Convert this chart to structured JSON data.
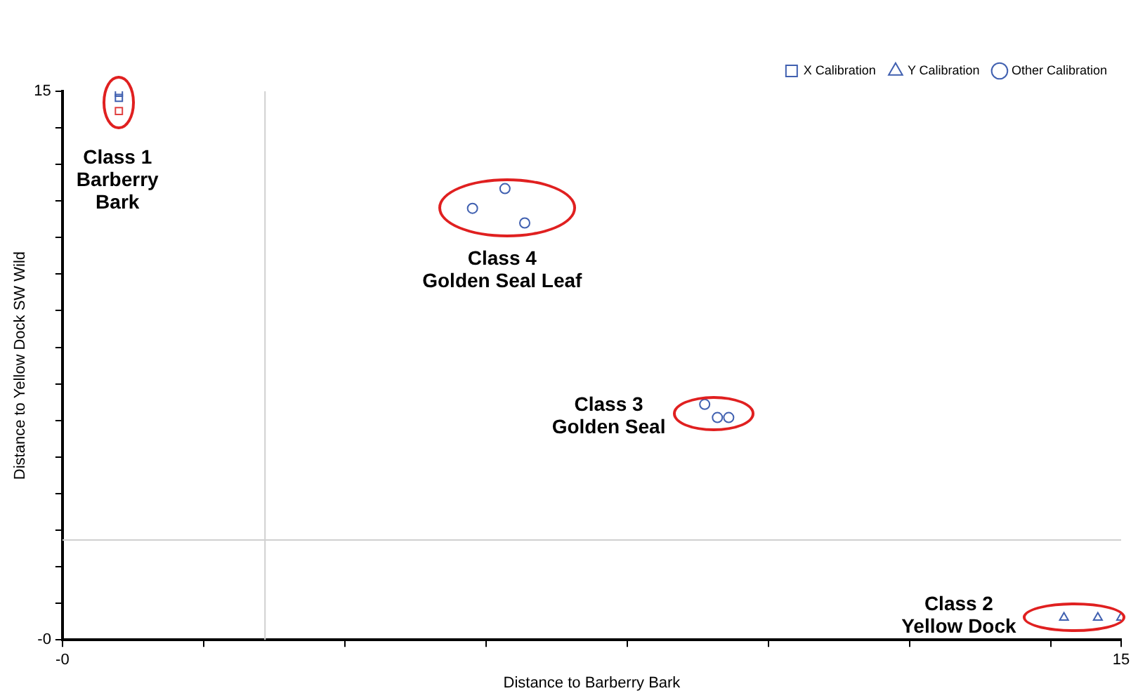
{
  "chart_data": {
    "type": "scatter",
    "xlabel": "Distance to Barberry Bark",
    "ylabel": "Distance to Yellow Dock SW Wild",
    "xlim": [
      0,
      15
    ],
    "ylim": [
      0,
      15
    ],
    "xticks": [
      {
        "value": 0,
        "label": "-0"
      },
      {
        "value": 2,
        "label": null
      },
      {
        "value": 4,
        "label": null
      },
      {
        "value": 6,
        "label": null
      },
      {
        "value": 8,
        "label": null
      },
      {
        "value": 10,
        "label": null
      },
      {
        "value": 12,
        "label": null
      },
      {
        "value": 14,
        "label": null
      },
      15
    ],
    "yticks": [
      {
        "value": 0,
        "label": "-0"
      },
      {
        "value": 1,
        "label": null
      },
      {
        "value": 2,
        "label": null
      },
      {
        "value": 3,
        "label": null
      },
      {
        "value": 4,
        "label": null
      },
      {
        "value": 5,
        "label": null
      },
      {
        "value": 6,
        "label": null
      },
      {
        "value": 7,
        "label": null
      },
      {
        "value": 8,
        "label": null
      },
      {
        "value": 9,
        "label": null
      },
      {
        "value": 10,
        "label": null
      },
      {
        "value": 11,
        "label": null
      },
      {
        "value": 12,
        "label": null
      },
      {
        "value": 13,
        "label": null
      },
      {
        "value": 14,
        "label": null
      },
      15
    ],
    "grid": false,
    "legend": "top right",
    "series": [
      {
        "name": "X Calibration",
        "color": "#4060b0",
        "marker": "square",
        "x": [
          0.8,
          0.8
        ],
        "values": [
          14.96,
          14.82
        ]
      },
      {
        "name": "Y Calibration",
        "color": "#4060b0",
        "marker": "triangle",
        "x": [
          14.19,
          14.67,
          15
        ],
        "values": [
          0.61,
          0.61,
          0.61
        ]
      },
      {
        "name": "Other Calibration",
        "color": "#4060b0",
        "marker": "circle",
        "x": [
          5.81,
          6.27,
          6.55,
          9.1,
          9.28,
          9.44
        ],
        "values": [
          11.8,
          12.34,
          11.4,
          6.44,
          6.08,
          6.08
        ]
      },
      {
        "color": "#e04040",
        "marker": "square",
        "x": [
          0.8
        ],
        "values": [
          14.46
        ]
      }
    ],
    "ref_lines": [
      {
        "axis": "x",
        "value": 2.87,
        "color": "#d0d0d0"
      },
      {
        "axis": "y",
        "value": 2.73,
        "color": "#d0d0d0"
      }
    ],
    "annotations": [
      "Class 1\nBarberry\nBark",
      "Class 4\nGolden Seal Leaf",
      "Class 3\nGolden Seal",
      "Class 2\nYellow Dock"
    ]
  }
}
